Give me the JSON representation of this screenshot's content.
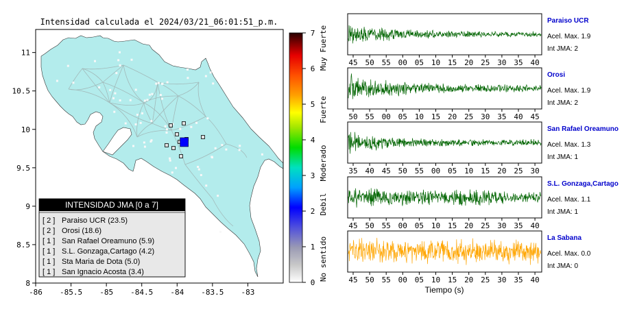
{
  "map": {
    "title": "Intensidad calculada el 2024/03/21_06:01:51_p.m.",
    "x_ticks": [
      "-86",
      "-85.5",
      "-85",
      "-84.5",
      "-84",
      "-83.5",
      "-83"
    ],
    "y_ticks": [
      "11",
      "10.5",
      "10",
      "9.5",
      "9",
      "8.5",
      "8"
    ],
    "xlim": [
      -86,
      -82.5
    ],
    "ylim": [
      8,
      11.3
    ],
    "land_color": "#b3ecec",
    "epicenter": {
      "lon": -83.9,
      "lat": 9.82,
      "color": "#0000ff"
    }
  },
  "legend": {
    "title": "INTENSIDAD JMA [0 a 7]",
    "items": [
      {
        "value": "[ 2 ]",
        "label": "Paraiso UCR (23.5)"
      },
      {
        "value": "[ 2 ]",
        "label": "Orosi (18.6)"
      },
      {
        "value": "[ 1 ]",
        "label": "San Rafael Oreamuno (5.9)"
      },
      {
        "value": "[ 1 ]",
        "label": "S.L. Gonzaga,Cartago (4.2)"
      },
      {
        "value": "[ 1 ]",
        "label": "Sta Maria de Dota (5.0)"
      },
      {
        "value": "[ 1 ]",
        "label": "San Ignacio Acosta (3.4)"
      }
    ]
  },
  "colorbar": {
    "ticks": [
      "7",
      "6",
      "5",
      "4",
      "3",
      "2",
      "1",
      "0"
    ],
    "range": [
      0,
      7
    ],
    "categories": [
      "Muy Fuerte",
      "Fuerte",
      "Moderado",
      "Debil",
      "No sentido"
    ]
  },
  "stations": [
    {
      "name": "Paraiso UCR",
      "acel": "Acel. Max. 1.9",
      "int": "Int JMA: 2",
      "color": "#006400",
      "amp": 0.7,
      "decay": 0.8,
      "ticks": [
        "45",
        "50",
        "55",
        "00",
        "05",
        "10",
        "15",
        "20",
        "25",
        "30",
        "35",
        "40"
      ]
    },
    {
      "name": "Orosi",
      "acel": "Acel. Max. 1.9",
      "int": "Int JMA: 2",
      "color": "#006400",
      "amp": 0.85,
      "decay": 0.65,
      "ticks": [
        "50",
        "55",
        "00",
        "05",
        "10",
        "15",
        "20",
        "25",
        "30",
        "35",
        "40",
        "45"
      ]
    },
    {
      "name": "San Rafael Oreamuno",
      "acel": "Acel. Max. 1.3",
      "int": "Int JMA: 1",
      "color": "#006400",
      "amp": 0.75,
      "decay": 0.85,
      "ticks": [
        "35",
        "40",
        "45",
        "50",
        "55",
        "00",
        "05",
        "10",
        "15",
        "20",
        "25",
        "30"
      ]
    },
    {
      "name": "S.L. Gonzaga,Cartago",
      "acel": "Acel. Max. 1.1",
      "int": "Int JMA: 1",
      "color": "#006400",
      "amp": 0.6,
      "decay": 0.15,
      "ticks": [
        "45",
        "50",
        "55",
        "00",
        "05",
        "10",
        "15",
        "20",
        "25",
        "30",
        "35",
        "40"
      ]
    },
    {
      "name": "La Sabana",
      "acel": "Acel. Max. 0.0",
      "int": "Int JMA: 0",
      "color": "#ffa500",
      "amp": 0.75,
      "decay": 0.0,
      "ticks": [
        "45",
        "50",
        "55",
        "00",
        "05",
        "10",
        "15",
        "20",
        "25",
        "30",
        "35",
        "40"
      ]
    }
  ],
  "station_name_color": "#0000cc",
  "waveform_xlabel": "Tiempo (s)",
  "chart_data": {
    "type": "map",
    "title": "Intensidad calculada el 2024/03/21_06:01:51_p.m.",
    "xlim": [
      -86,
      -82.5
    ],
    "ylim": [
      8,
      11.3
    ],
    "x_ticks": [
      -86,
      -85.5,
      -85,
      -84.5,
      -84,
      -83.5,
      -83
    ],
    "y_ticks": [
      8,
      8.5,
      9,
      9.5,
      10,
      10.5,
      11
    ],
    "colorbar_range": [
      0,
      7
    ],
    "legend_title": "INTENSIDAD JMA [0 a 7]",
    "stations": [
      {
        "name": "Paraiso UCR",
        "intensity": 2,
        "distance": 23.5,
        "acel_max": 1.9
      },
      {
        "name": "Orosi",
        "intensity": 2,
        "distance": 18.6,
        "acel_max": 1.9
      },
      {
        "name": "San Rafael Oreamuno",
        "intensity": 1,
        "distance": 5.9,
        "acel_max": 1.3
      },
      {
        "name": "S.L. Gonzaga,Cartago",
        "intensity": 1,
        "distance": 4.2,
        "acel_max": 1.1
      },
      {
        "name": "Sta Maria de Dota",
        "intensity": 1,
        "distance": 5.0
      },
      {
        "name": "San Ignacio Acosta",
        "intensity": 1,
        "distance": 3.4
      },
      {
        "name": "La Sabana",
        "intensity": 0,
        "acel_max": 0.0
      }
    ]
  }
}
